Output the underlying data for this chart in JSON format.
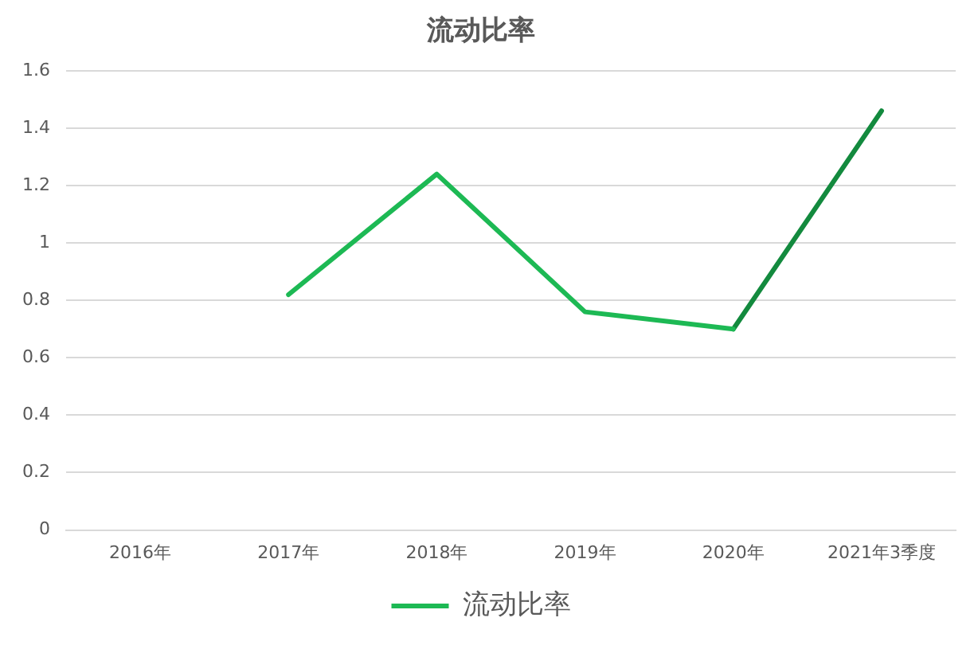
{
  "chart_data": {
    "type": "line",
    "title": "流动比率",
    "categories": [
      "2016年",
      "2017年",
      "2018年",
      "2019年",
      "2020年",
      "2021年3季度"
    ],
    "series": [
      {
        "name": "流动比率",
        "color": "#1db954",
        "values": [
          null,
          0.82,
          1.24,
          0.76,
          0.7,
          null
        ]
      },
      {
        "color": "#138a3e",
        "values": [
          null,
          null,
          null,
          null,
          0.7,
          1.46
        ]
      }
    ],
    "ylim": [
      0,
      1.6
    ],
    "yticks": [
      0,
      0.2,
      0.4,
      0.6,
      0.8,
      1,
      1.2,
      1.4,
      1.6
    ],
    "grid": "y",
    "legend": "bottom",
    "marker": "none"
  }
}
